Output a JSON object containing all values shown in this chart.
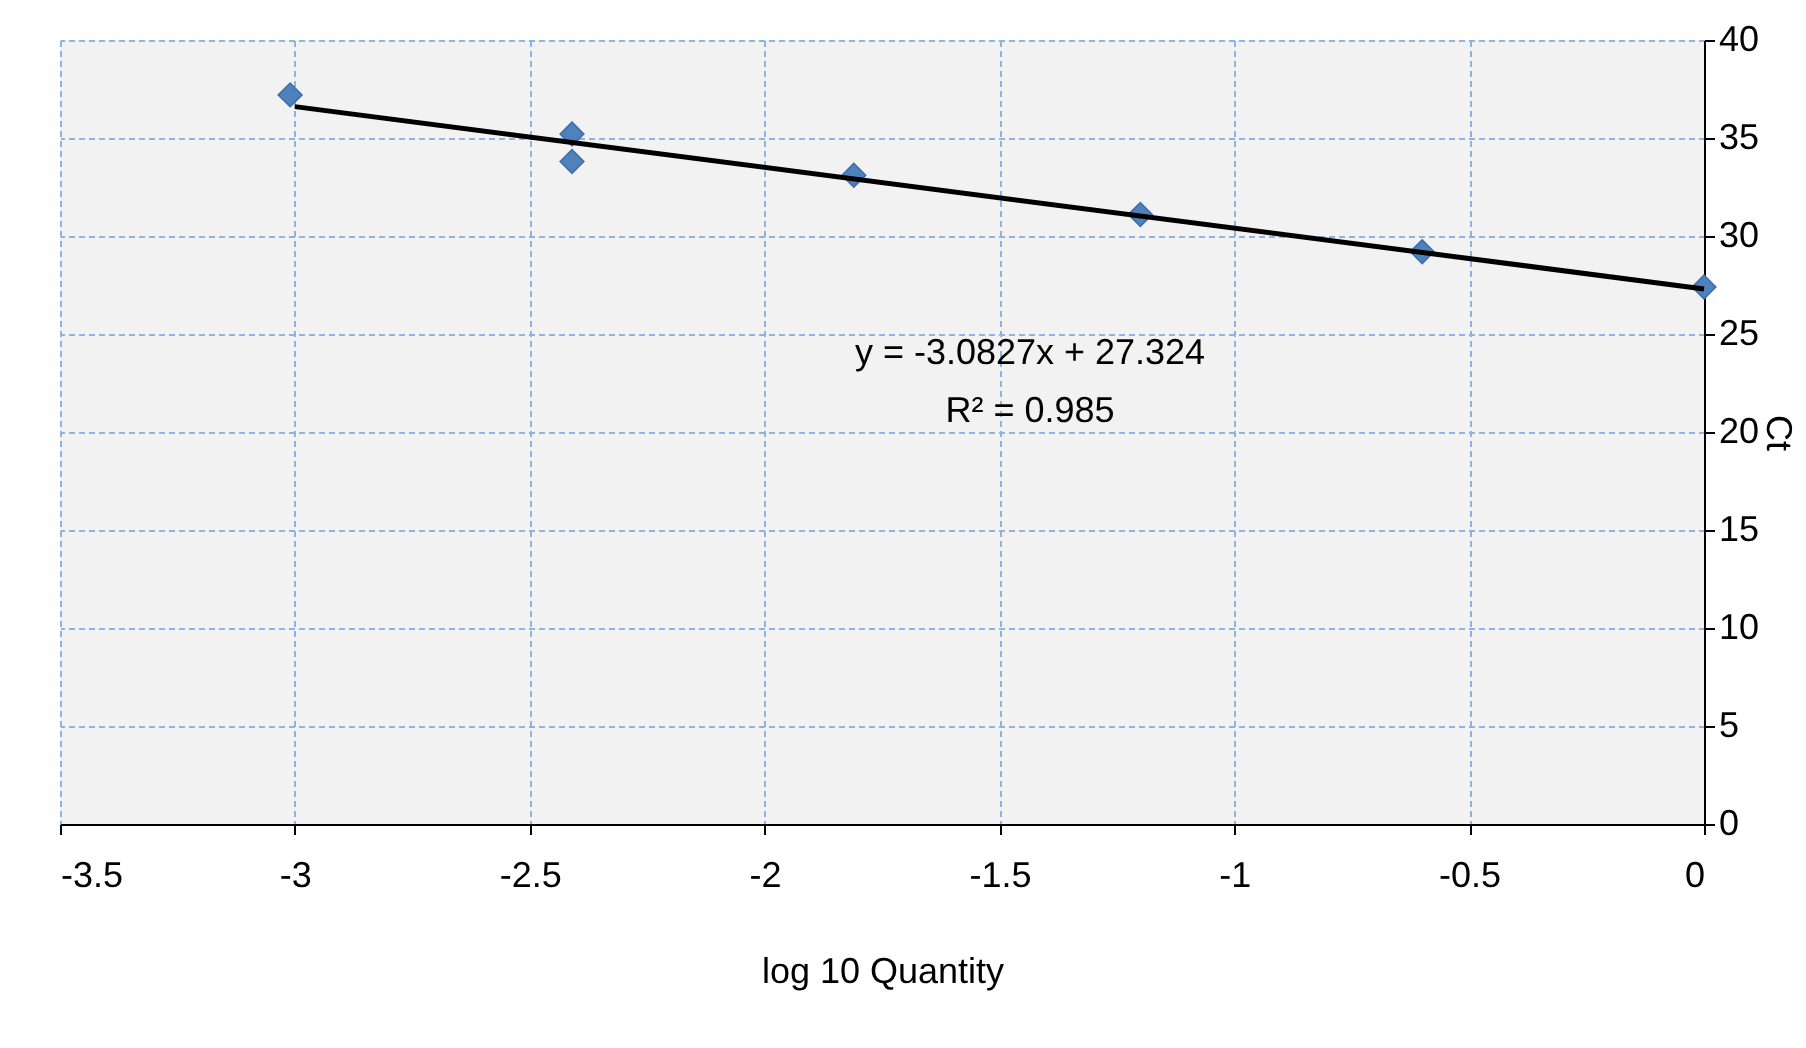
{
  "chart_data": {
    "type": "scatter",
    "xlabel": "log 10 Quantity",
    "ylabel": "Ct",
    "xlim": [
      -3.5,
      0
    ],
    "ylim": [
      0,
      40
    ],
    "xticks": [
      -3.5,
      -3,
      -2.5,
      -2,
      -1.5,
      -1,
      -0.5,
      0
    ],
    "yticks": [
      0,
      5,
      10,
      15,
      20,
      25,
      30,
      35,
      40
    ],
    "grid": true,
    "marker": "diamond",
    "annotations": [
      "y = -3.0827x + 27.324",
      "R² = 0.985"
    ],
    "series": [
      {
        "color": "#4f81bd",
        "x": [
          -3.01,
          -2.41,
          -2.41,
          -1.81,
          -1.2,
          -0.6,
          0
        ],
        "values": [
          37.2,
          35.2,
          33.8,
          33.1,
          31.1,
          29.2,
          27.4
        ]
      },
      {
        "type": "line",
        "marker": "none",
        "color": "#000000",
        "x": [
          -3,
          0
        ],
        "values": [
          36.6,
          27.3
        ]
      }
    ]
  }
}
